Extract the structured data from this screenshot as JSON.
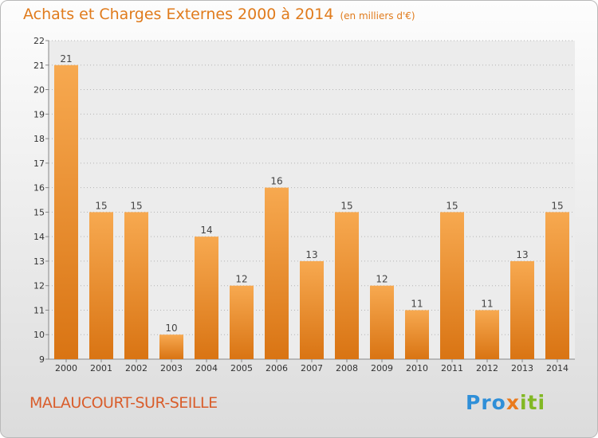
{
  "title": "Achats et Charges Externes 2000 à 2014",
  "subtitle": "(en milliers d'€)",
  "commune": "MALAUCOURT-SUR-SEILLE",
  "logo": {
    "p1": "Pro",
    "p2": "x",
    "p3": "iti"
  },
  "colors": {
    "bar_top": "#f7a950",
    "bar_bottom": "#d97413",
    "title": "#e07b1c",
    "commune": "#d95d2b"
  },
  "chart_data": {
    "type": "bar",
    "categories": [
      "2000",
      "2001",
      "2002",
      "2003",
      "2004",
      "2005",
      "2006",
      "2007",
      "2008",
      "2009",
      "2010",
      "2011",
      "2012",
      "2013",
      "2014"
    ],
    "values": [
      21,
      15,
      15,
      10,
      14,
      12,
      16,
      13,
      15,
      12,
      11,
      15,
      11,
      13,
      15
    ],
    "ylim": [
      9,
      22
    ],
    "yticks": [
      9,
      10,
      11,
      12,
      13,
      14,
      15,
      16,
      17,
      18,
      19,
      20,
      21,
      22
    ],
    "grid": true
  }
}
